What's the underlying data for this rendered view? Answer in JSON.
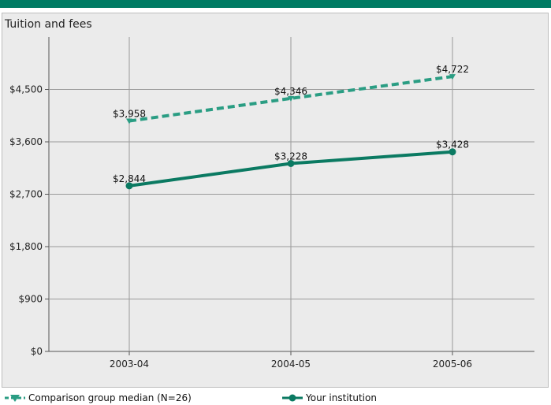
{
  "chart_data": {
    "type": "line",
    "title": "Tuition and fees",
    "categories": [
      "2003-04",
      "2004-05",
      "2005-06"
    ],
    "y_ticks": [
      "$0",
      "$900",
      "$1,800",
      "$2,700",
      "$3,600",
      "$4,500"
    ],
    "ylim": [
      0,
      5400
    ],
    "grid": true,
    "legend_position": "bottom",
    "series": [
      {
        "name": "Comparison group median (N=26)",
        "values": [
          3958,
          4346,
          4722
        ],
        "labels": [
          "$3,958",
          "$4,346",
          "$4,722"
        ],
        "style": "dashed",
        "marker": "triangle",
        "color": "#2a9d83"
      },
      {
        "name": "Your institution",
        "values": [
          2844,
          3228,
          3428
        ],
        "labels": [
          "$2,844",
          "$3,228",
          "$3,428"
        ],
        "style": "solid",
        "marker": "circle",
        "color": "#0b7a62"
      }
    ]
  },
  "colors": {
    "top_bar": "#007b63",
    "panel_bg": "#ebebeb",
    "gridline": "#9a9a9a"
  }
}
